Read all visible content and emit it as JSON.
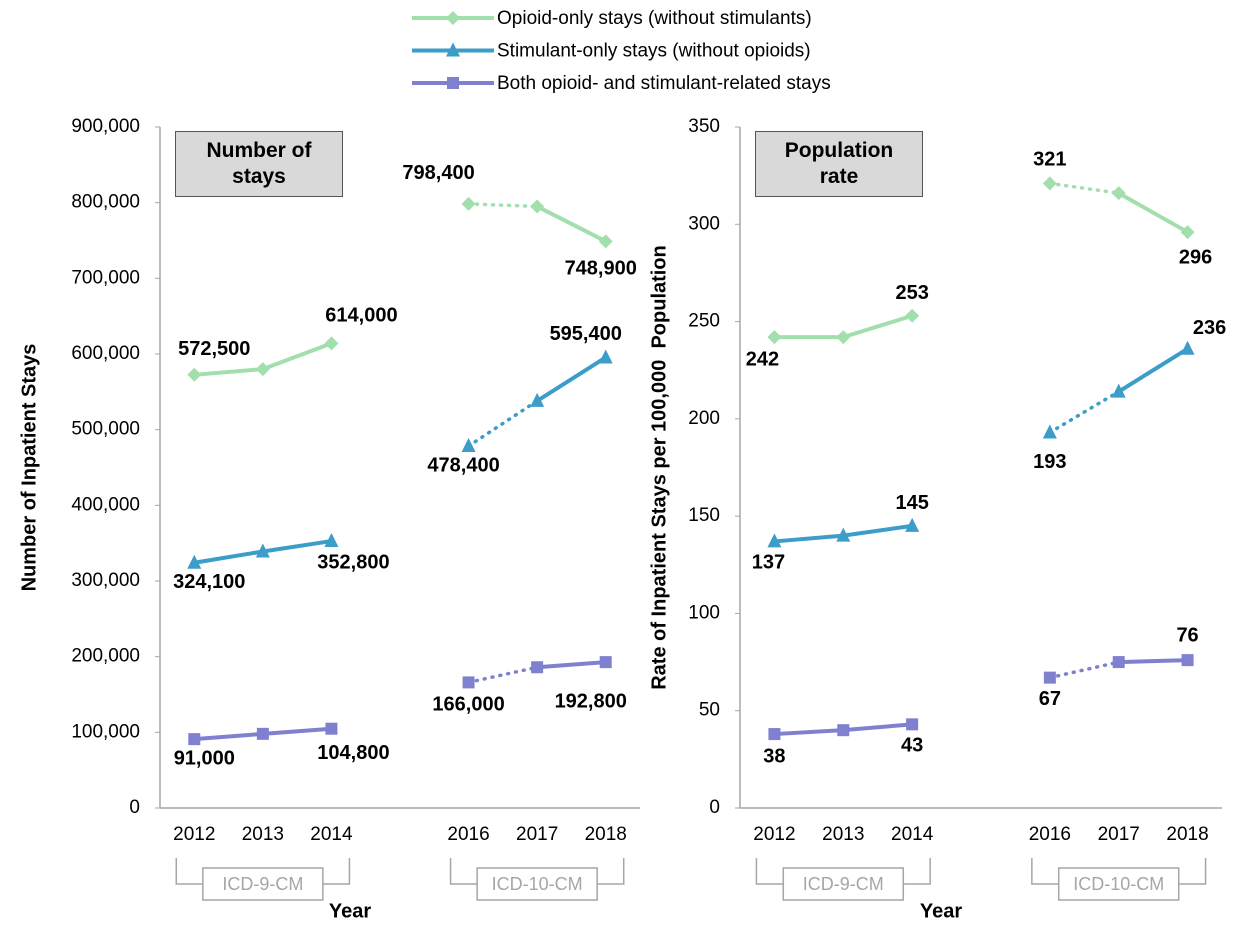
{
  "chart_data": [
    {
      "type": "line",
      "box_label": "Number of stays",
      "y_label": "Number of Inpatient Stays",
      "x_label": "Year",
      "categories": [
        "2012",
        "2013",
        "2014",
        null,
        "2016",
        "2017",
        "2018"
      ],
      "annotations": [
        "ICD-9-CM",
        "ICD-10-CM"
      ],
      "segment_styles": [
        "solid",
        "solid",
        null,
        null,
        "dotted",
        "solid"
      ],
      "ylim": [
        0,
        900000
      ],
      "yticks": [
        0,
        {
          "value": 100000,
          "label": "100,000"
        },
        {
          "value": 200000,
          "label": "200,000"
        },
        {
          "value": 300000,
          "label": "300,000"
        },
        {
          "value": 400000,
          "label": "400,000"
        },
        {
          "value": 500000,
          "label": "500,000"
        },
        {
          "value": 600000,
          "label": "600,000"
        },
        {
          "value": 700000,
          "label": "700,000"
        },
        {
          "value": 800000,
          "label": "800,000"
        },
        {
          "value": 900000,
          "label": "900,000"
        }
      ],
      "series": [
        {
          "name": "Opioid-only stays (without stimulants)",
          "color": "#a3dfad",
          "marker": "diamond",
          "values": [
            572500,
            580000,
            614000,
            null,
            798400,
            795000,
            748900
          ],
          "value_labels": [
            "572,500",
            null,
            "614,000",
            null,
            "798,400",
            null,
            "748,900"
          ]
        },
        {
          "name": "Stimulant-only stays (without opioids)",
          "color": "#3c9dc8",
          "marker": "triangle",
          "values": [
            324100,
            339000,
            352800,
            null,
            478400,
            538000,
            595400
          ],
          "value_labels": [
            "324,100",
            null,
            "352,800",
            null,
            "478,400",
            null,
            "595,400"
          ]
        },
        {
          "name": "Both opioid- and stimulant-related stays",
          "color": "#7f80cf",
          "marker": "square",
          "values": [
            91000,
            98000,
            104800,
            null,
            166000,
            186000,
            192800
          ],
          "value_labels": [
            "91,000",
            null,
            "104,800",
            null,
            "166,000",
            null,
            "192,800"
          ]
        }
      ]
    },
    {
      "type": "line",
      "box_label": "Population rate",
      "y_label": "Rate of Inpatient Stays per 100,000  Population",
      "x_label": "Year",
      "categories": [
        "2012",
        "2013",
        "2014",
        null,
        "2016",
        "2017",
        "2018"
      ],
      "annotations": [
        "ICD-9-CM",
        "ICD-10-CM"
      ],
      "segment_styles": [
        "solid",
        "solid",
        null,
        null,
        "dotted",
        "solid"
      ],
      "ylim": [
        0,
        350
      ],
      "yticks": [
        0,
        50,
        100,
        150,
        200,
        250,
        300,
        350
      ],
      "series": [
        {
          "name": "Opioid-only stays (without stimulants)",
          "color": "#a3dfad",
          "marker": "diamond",
          "values": [
            242,
            242,
            253,
            null,
            321,
            316,
            296
          ],
          "value_labels": [
            "242",
            null,
            "253",
            null,
            "321",
            null,
            "296"
          ]
        },
        {
          "name": "Stimulant-only stays (without opioids)",
          "color": "#3c9dc8",
          "marker": "triangle",
          "values": [
            137,
            140,
            145,
            null,
            193,
            214,
            236
          ],
          "value_labels": [
            "137",
            null,
            "145",
            null,
            "193",
            null,
            "236"
          ]
        },
        {
          "name": "Both opioid- and stimulant-related stays",
          "color": "#7f80cf",
          "marker": "square",
          "values": [
            38,
            40,
            43,
            null,
            67,
            75,
            76
          ],
          "value_labels": [
            "38",
            null,
            "43",
            null,
            "67",
            null,
            "76"
          ]
        }
      ]
    }
  ]
}
